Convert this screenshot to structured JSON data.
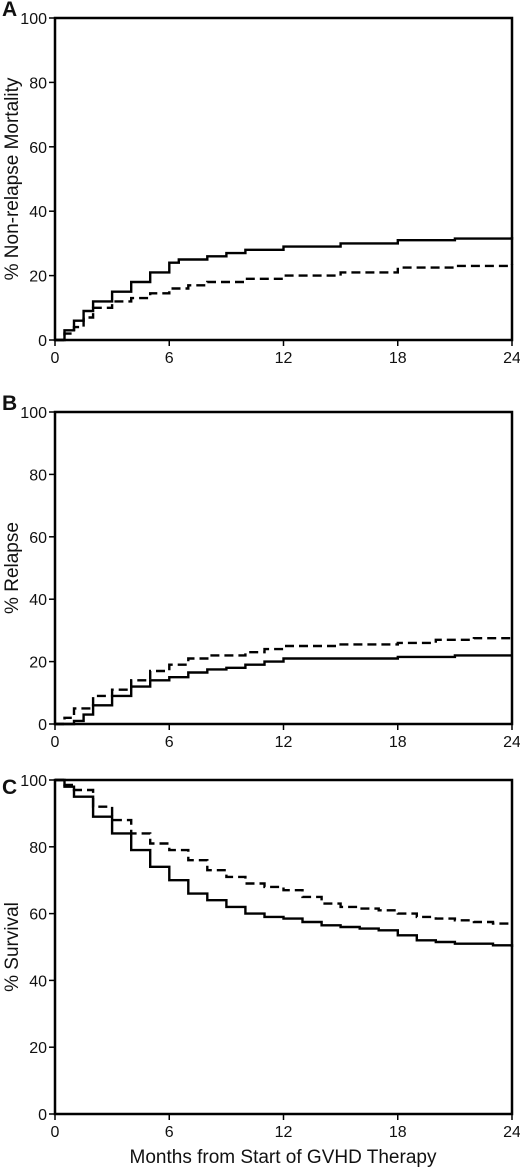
{
  "xlabel": "Months from Start of GVHD Therapy",
  "chart_data": [
    {
      "panel": "A",
      "type": "line",
      "ylabel": "% Non-relapse Mortality",
      "xlim": [
        0,
        24
      ],
      "ylim": [
        0,
        100
      ],
      "xticks": [
        0,
        6,
        12,
        18,
        24
      ],
      "yticks": [
        0,
        20,
        40,
        60,
        80,
        100
      ],
      "series": [
        {
          "style": "solid",
          "x": [
            0,
            0.5,
            1,
            1.5,
            2,
            3,
            4,
            5,
            6,
            6.5,
            7,
            8,
            9,
            10,
            12,
            15,
            18,
            21,
            24
          ],
          "y": [
            0,
            3,
            6,
            9,
            12,
            15,
            18,
            21,
            24,
            25,
            25,
            26,
            27,
            28,
            29,
            30,
            31,
            31.5,
            32
          ]
        },
        {
          "style": "dashed",
          "x": [
            0,
            0.5,
            1,
            1.5,
            2,
            3,
            4,
            5,
            6,
            7,
            8,
            10,
            12,
            15,
            18,
            21,
            24
          ],
          "y": [
            0,
            2,
            4,
            7,
            10,
            12,
            13,
            14.5,
            16,
            17,
            18,
            19,
            20,
            21,
            22.5,
            23,
            23.5
          ]
        }
      ]
    },
    {
      "panel": "B",
      "type": "line",
      "ylabel": "% Relapse",
      "xlim": [
        0,
        24
      ],
      "ylim": [
        0,
        100
      ],
      "xticks": [
        0,
        6,
        12,
        18,
        24
      ],
      "yticks": [
        0,
        20,
        40,
        60,
        80,
        100
      ],
      "series": [
        {
          "style": "solid",
          "x": [
            0,
            1,
            1.5,
            2,
            3,
            4,
            5,
            6,
            7,
            8,
            9,
            10,
            11,
            12,
            15,
            18,
            21,
            24
          ],
          "y": [
            0,
            1,
            3,
            6,
            9,
            12,
            14,
            15,
            16.5,
            17.5,
            18,
            19,
            20,
            21,
            21,
            21.5,
            22,
            22
          ]
        },
        {
          "style": "dashed",
          "x": [
            0,
            0.5,
            1,
            2,
            3,
            4,
            5,
            6,
            7,
            8,
            10,
            11,
            12,
            15,
            18,
            20,
            22,
            24
          ],
          "y": [
            0,
            2,
            5,
            9,
            11,
            14,
            17,
            19,
            21,
            22,
            23,
            24,
            25,
            25.5,
            26,
            27,
            27.5,
            27.5
          ]
        }
      ]
    },
    {
      "panel": "C",
      "type": "line",
      "ylabel": "% Survival",
      "xlim": [
        0,
        24
      ],
      "ylim": [
        0,
        100
      ],
      "xticks": [
        0,
        6,
        12,
        18,
        24
      ],
      "yticks": [
        0,
        20,
        40,
        60,
        80,
        100
      ],
      "series": [
        {
          "style": "solid",
          "x": [
            0,
            0.5,
            1,
            2,
            3,
            4,
            5,
            6,
            7,
            8,
            9,
            10,
            11,
            12,
            13,
            14,
            15,
            16,
            17,
            18,
            19,
            20,
            21,
            22,
            23,
            24
          ],
          "y": [
            100,
            98,
            95,
            89,
            84,
            79,
            74,
            70,
            66,
            64,
            62,
            60,
            59,
            58.5,
            57.5,
            56.5,
            56,
            55.5,
            55,
            53.5,
            52,
            51.5,
            51,
            51,
            50.5,
            50
          ]
        },
        {
          "style": "dashed",
          "x": [
            0,
            0.5,
            1,
            2,
            3,
            4,
            5,
            6,
            7,
            8,
            9,
            10,
            11,
            12,
            13,
            14,
            15,
            16,
            17,
            18,
            19,
            20,
            21,
            22,
            23,
            24
          ],
          "y": [
            100,
            98.5,
            97,
            92,
            88,
            84,
            81,
            79,
            76,
            73,
            71,
            69,
            68,
            67,
            65,
            63,
            62,
            61.5,
            61,
            60,
            59,
            58.5,
            58,
            57.5,
            57,
            57
          ]
        }
      ]
    }
  ]
}
